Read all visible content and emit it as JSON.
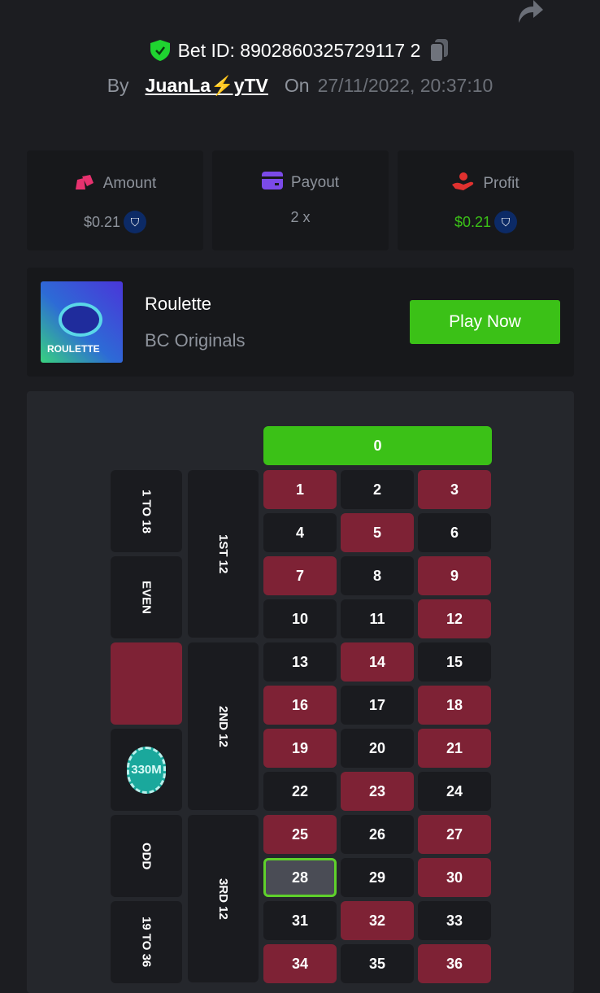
{
  "header": {
    "bet_id_label": "Bet ID: 8902860325729117 2",
    "by_label": "By",
    "user": "JuanLa⚡yTV",
    "on_label": "On",
    "date": "27/11/2022, 20:37:10"
  },
  "stats": [
    {
      "label": "Amount",
      "value": "$0.21",
      "color": "#8e939c",
      "icon": "amount-icon",
      "icon_color": "#e8326f"
    },
    {
      "label": "Payout",
      "value": "2 x",
      "color": "#8e939c",
      "icon": "payout-card-icon",
      "icon_color": "#7b4ae8"
    },
    {
      "label": "Profit",
      "value": "$0.21",
      "color": "#3bc117",
      "icon": "profit-hand-icon",
      "icon_color": "#e0312f"
    }
  ],
  "game": {
    "thumb_text": "ROULETTE",
    "name": "Roulette",
    "provider": "BC Originals",
    "play_label": "Play Now"
  },
  "board": {
    "zero": "0",
    "red_numbers": [
      1,
      3,
      5,
      7,
      9,
      12,
      14,
      16,
      18,
      19,
      21,
      23,
      25,
      27,
      30,
      32,
      34,
      36
    ],
    "selected": 28,
    "outside_col1": [
      "1 TO 18",
      "EVEN",
      "",
      "",
      "ODD",
      "19 TO 36"
    ],
    "dozens": [
      "1ST 12",
      "2ND 12",
      "3RD 12"
    ],
    "chip_label": "330M"
  },
  "colors": {
    "accent": "#3bc117",
    "red": "#7e2235"
  }
}
